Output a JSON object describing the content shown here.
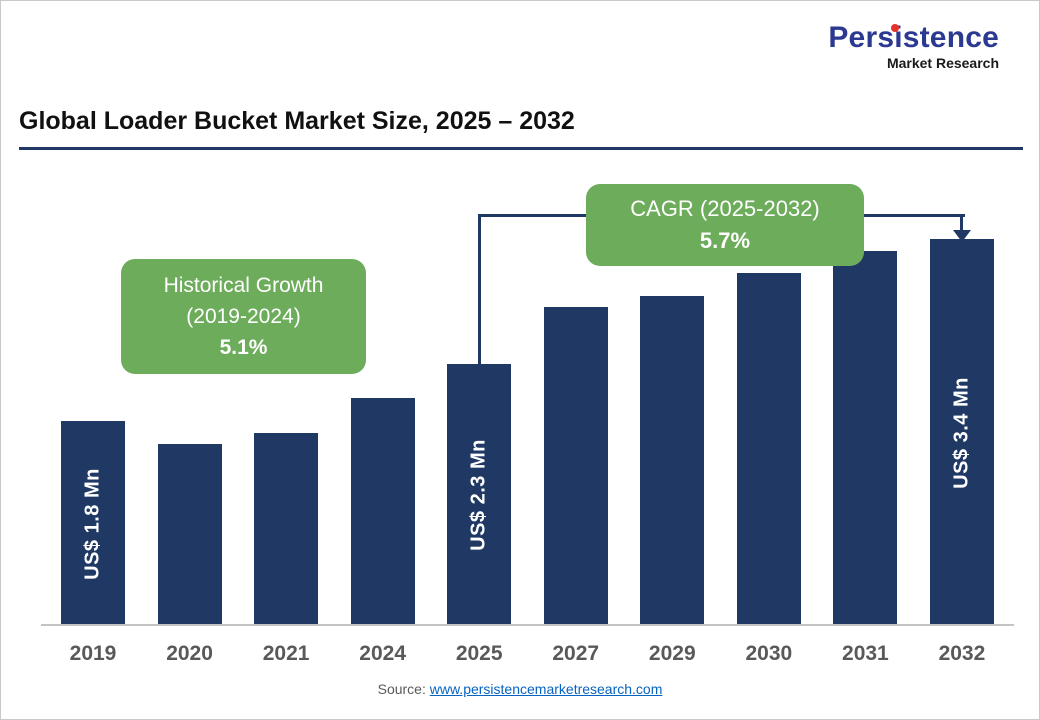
{
  "logo": {
    "name": "Persistence",
    "subtitle": "Market Research"
  },
  "annotations": {
    "historical": {
      "line1": "Historical Growth",
      "line2": "(2019-2024)",
      "value": "5.1%"
    },
    "cagr": {
      "line1": "CAGR (2025-2032)",
      "value": "5.7%"
    }
  },
  "footer": {
    "source_label": "Source:",
    "source_link": "www.persistencemarketresearch.com"
  },
  "colors": {
    "bar": "#1f3864",
    "accent_green": "#6dac5b",
    "bracket_line": "#1f3864",
    "link": "#0563c1"
  },
  "chart_data": {
    "type": "bar",
    "title": "Global Loader Bucket Market Size, 2025 – 2032",
    "unit": "US$ Mn",
    "categories": [
      "2019",
      "2020",
      "2021",
      "2024",
      "2025",
      "2027",
      "2029",
      "2030",
      "2031",
      "2032"
    ],
    "values": [
      1.8,
      1.6,
      1.7,
      2.0,
      2.3,
      2.8,
      2.9,
      3.1,
      3.3,
      3.4
    ],
    "labeled_values": {
      "2019": 1.8,
      "2025": 2.3,
      "2032": 3.4
    },
    "bar_labels": {
      "2019": "US$ 1.8 Mn",
      "2025": "US$ 2.3 Mn",
      "2032": "US$ 3.4 Mn"
    },
    "xlabel": "",
    "ylabel": "",
    "ylim": [
      0,
      4.0
    ],
    "grid": false,
    "legend": false,
    "bar_color": "#1f3864"
  }
}
